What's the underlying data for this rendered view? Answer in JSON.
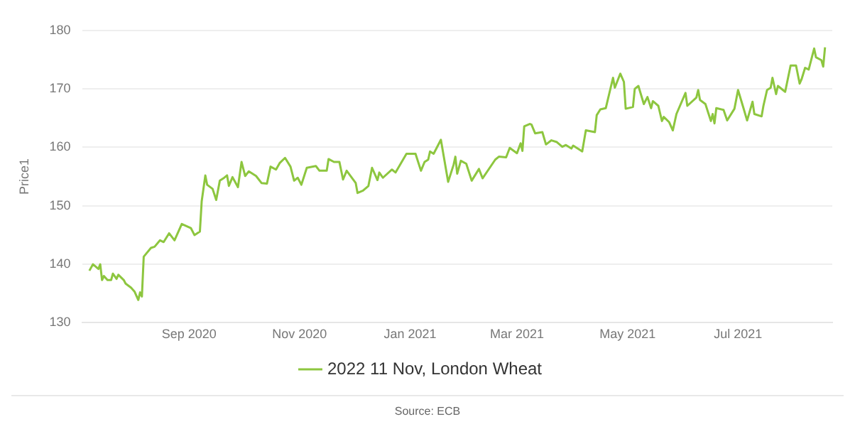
{
  "chart_data": {
    "type": "line",
    "ylabel": "Price1",
    "legend": "bottom",
    "grid": "y",
    "marker": "none",
    "line_style": "solid",
    "xlim": [
      "2020-07-04",
      "2021-08-22"
    ],
    "xticks": [
      {
        "value": "2020-09-01",
        "label": "Sep 2020"
      },
      {
        "value": "2020-11-01",
        "label": "Nov 2020"
      },
      {
        "value": "2021-01-01",
        "label": "Jan 2021"
      },
      {
        "value": "2021-03-01",
        "label": "Mar 2021"
      },
      {
        "value": "2021-05-01",
        "label": "May 2021"
      },
      {
        "value": "2021-07-01",
        "label": "Jul 2021"
      }
    ],
    "ylim": [
      130,
      180
    ],
    "yticks": [
      130,
      140,
      150,
      160,
      170,
      180
    ],
    "annotations": [
      "Source: ECB"
    ],
    "series": [
      {
        "name": "2022 11 Nov, London Wheat",
        "color": "#8dc63f",
        "x": [
          "2020-07-08",
          "2020-07-10",
          "2020-07-13",
          "2020-07-14",
          "2020-07-15",
          "2020-07-16",
          "2020-07-18",
          "2020-07-20",
          "2020-07-21",
          "2020-07-23",
          "2020-07-24",
          "2020-07-27",
          "2020-07-28",
          "2020-07-31",
          "2020-08-02",
          "2020-08-04",
          "2020-08-05",
          "2020-08-06",
          "2020-08-07",
          "2020-08-11",
          "2020-08-13",
          "2020-08-16",
          "2020-08-18",
          "2020-08-21",
          "2020-08-24",
          "2020-08-28",
          "2020-09-02",
          "2020-09-04",
          "2020-09-07",
          "2020-09-08",
          "2020-09-10",
          "2020-09-11",
          "2020-09-14",
          "2020-09-16",
          "2020-09-18",
          "2020-09-20",
          "2020-09-22",
          "2020-09-23",
          "2020-09-25",
          "2020-09-28",
          "2020-09-30",
          "2020-10-02",
          "2020-10-04",
          "2020-10-08",
          "2020-10-11",
          "2020-10-14",
          "2020-10-16",
          "2020-10-19",
          "2020-10-21",
          "2020-10-24",
          "2020-10-27",
          "2020-10-29",
          "2020-10-31",
          "2020-11-02",
          "2020-11-05",
          "2020-11-10",
          "2020-11-12",
          "2020-11-16",
          "2020-11-17",
          "2020-11-20",
          "2020-11-23",
          "2020-11-25",
          "2020-11-27",
          "2020-12-02",
          "2020-12-03",
          "2020-12-06",
          "2020-12-09",
          "2020-12-11",
          "2020-12-14",
          "2020-12-15",
          "2020-12-17",
          "2020-12-22",
          "2020-12-24",
          "2020-12-30",
          "2021-01-04",
          "2021-01-07",
          "2021-01-09",
          "2021-01-11",
          "2021-01-12",
          "2021-01-14",
          "2021-01-18",
          "2021-01-22",
          "2021-01-25",
          "2021-01-26",
          "2021-01-27",
          "2021-01-29",
          "2021-02-01",
          "2021-02-04",
          "2021-02-08",
          "2021-02-10",
          "2021-02-17",
          "2021-02-19",
          "2021-02-23",
          "2021-02-25",
          "2021-03-01",
          "2021-03-03",
          "2021-03-04",
          "2021-03-05",
          "2021-03-08",
          "2021-03-09",
          "2021-03-11",
          "2021-03-15",
          "2021-03-17",
          "2021-03-20",
          "2021-03-23",
          "2021-03-26",
          "2021-03-28",
          "2021-03-31",
          "2021-04-01",
          "2021-04-05",
          "2021-04-06",
          "2021-04-08",
          "2021-04-13",
          "2021-04-14",
          "2021-04-16",
          "2021-04-19",
          "2021-04-23",
          "2021-04-24",
          "2021-04-27",
          "2021-04-29",
          "2021-04-30",
          "2021-05-04",
          "2021-05-05",
          "2021-05-07",
          "2021-05-10",
          "2021-05-12",
          "2021-05-14",
          "2021-05-15",
          "2021-05-18",
          "2021-05-20",
          "2021-05-21",
          "2021-05-24",
          "2021-05-26",
          "2021-05-28",
          "2021-06-02",
          "2021-06-03",
          "2021-06-08",
          "2021-06-09",
          "2021-06-10",
          "2021-06-13",
          "2021-06-16",
          "2021-06-17",
          "2021-06-18",
          "2021-06-19",
          "2021-06-23",
          "2021-06-25",
          "2021-06-29",
          "2021-07-01",
          "2021-07-04",
          "2021-07-06",
          "2021-07-09",
          "2021-07-10",
          "2021-07-14",
          "2021-07-15",
          "2021-07-17",
          "2021-07-19",
          "2021-07-20",
          "2021-07-22",
          "2021-07-23",
          "2021-07-27",
          "2021-07-30",
          "2021-08-02",
          "2021-08-04",
          "2021-08-05",
          "2021-08-07",
          "2021-08-09",
          "2021-08-11",
          "2021-08-12",
          "2021-08-13",
          "2021-08-16",
          "2021-08-17",
          "2021-08-18"
        ],
        "values": [
          138.9,
          140.0,
          139.2,
          140.0,
          137.3,
          138.0,
          137.3,
          137.3,
          138.4,
          137.5,
          138.2,
          137.3,
          136.7,
          136.0,
          135.3,
          133.9,
          135.2,
          134.5,
          141.3,
          142.8,
          143.0,
          144.1,
          143.8,
          145.3,
          144.1,
          146.9,
          146.2,
          145.0,
          145.6,
          150.8,
          155.2,
          153.6,
          152.9,
          151.0,
          154.3,
          154.7,
          155.2,
          153.4,
          154.9,
          153.2,
          157.5,
          155.1,
          155.9,
          155.1,
          153.9,
          153.8,
          156.7,
          156.2,
          157.3,
          158.2,
          156.7,
          154.3,
          154.8,
          153.6,
          156.5,
          156.8,
          156.0,
          156.0,
          158.0,
          157.5,
          157.5,
          154.5,
          156.0,
          153.9,
          152.2,
          152.6,
          153.4,
          156.5,
          154.4,
          155.7,
          154.8,
          156.2,
          155.7,
          158.9,
          158.9,
          156.0,
          157.5,
          157.9,
          159.3,
          158.9,
          161.3,
          154.1,
          157.0,
          158.4,
          155.5,
          157.7,
          157.2,
          154.3,
          156.3,
          154.7,
          157.9,
          158.4,
          158.3,
          159.9,
          159.0,
          160.7,
          159.4,
          163.6,
          164.0,
          163.9,
          162.4,
          162.6,
          160.5,
          161.2,
          160.9,
          160.1,
          160.4,
          159.8,
          160.3,
          159.5,
          159.3,
          162.9,
          162.6,
          165.5,
          166.5,
          166.7,
          171.9,
          170.2,
          172.6,
          171.2,
          166.6,
          166.9,
          170.0,
          170.5,
          167.4,
          168.6,
          166.7,
          167.9,
          167.1,
          164.5,
          165.2,
          164.3,
          162.9,
          165.7,
          169.3,
          167.1,
          168.5,
          169.8,
          168.1,
          167.4,
          164.5,
          165.7,
          164.1,
          166.7,
          166.4,
          164.6,
          166.6,
          169.8,
          166.7,
          164.6,
          167.8,
          165.7,
          165.3,
          167.1,
          169.8,
          170.2,
          171.9,
          169.1,
          170.5,
          169.5,
          174.0,
          174.0,
          170.9,
          171.6,
          173.6,
          173.3,
          175.7,
          176.9,
          175.4,
          174.9,
          173.8,
          177.1
        ]
      }
    ]
  }
}
